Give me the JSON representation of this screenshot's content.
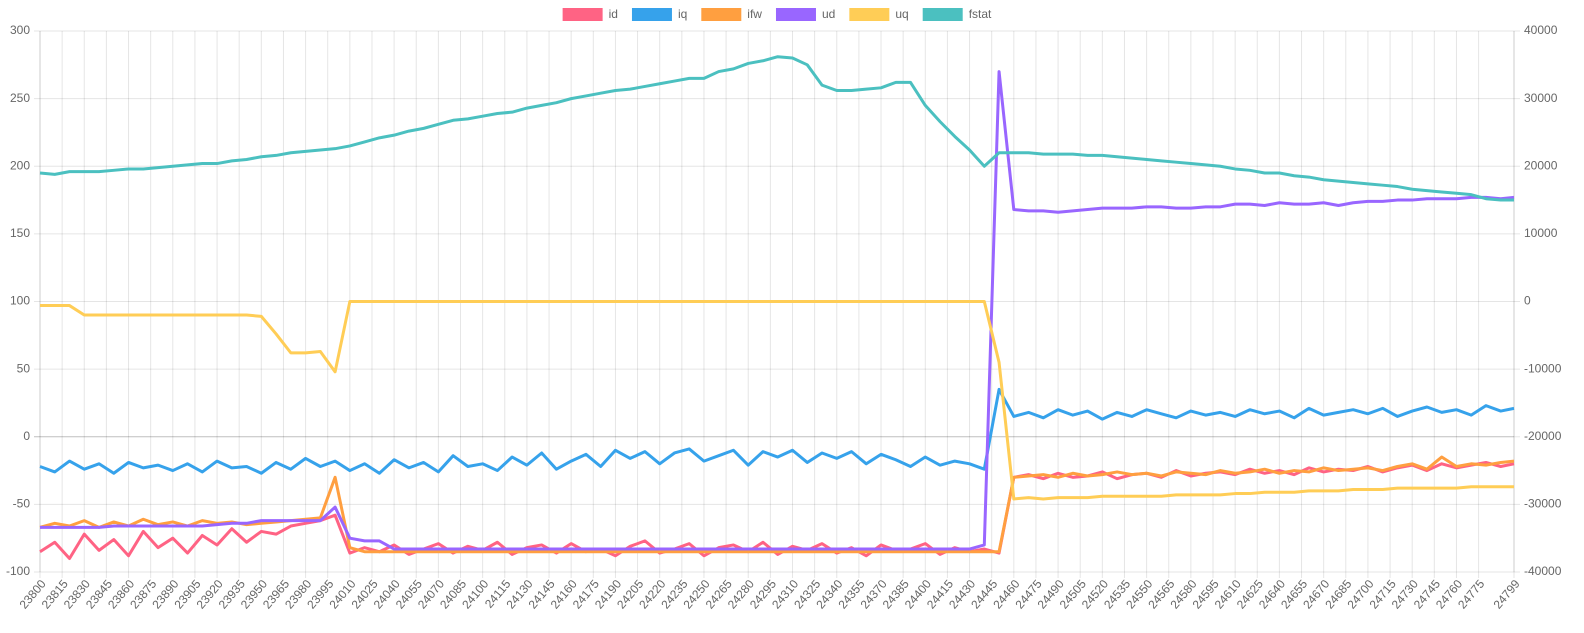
{
  "chart_data": {
    "type": "line",
    "legend": "top",
    "grid": true,
    "xlim": [
      23800,
      24799
    ],
    "xticks": [
      23800,
      23815,
      23830,
      23845,
      23860,
      23875,
      23890,
      23905,
      23920,
      23935,
      23950,
      23965,
      23980,
      23995,
      24010,
      24025,
      24040,
      24055,
      24070,
      24085,
      24100,
      24115,
      24130,
      24145,
      24160,
      24175,
      24190,
      24205,
      24220,
      24235,
      24250,
      24265,
      24280,
      24295,
      24310,
      24325,
      24340,
      24355,
      24370,
      24385,
      24400,
      24415,
      24430,
      24445,
      24460,
      24475,
      24490,
      24505,
      24520,
      24535,
      24550,
      24565,
      24580,
      24595,
      24610,
      24625,
      24640,
      24655,
      24670,
      24685,
      24700,
      24715,
      24730,
      24745,
      24760,
      24775,
      24799
    ],
    "ylim": [
      -100,
      300
    ],
    "yticks": [
      -100,
      -50,
      0,
      50,
      100,
      150,
      200,
      250,
      300
    ],
    "y2lim": [
      -40000,
      40000
    ],
    "y2ticks": [
      -40000,
      -30000,
      -20000,
      -10000,
      0,
      10000,
      20000,
      30000,
      40000
    ],
    "x": [
      23800,
      23810,
      23820,
      23830,
      23840,
      23850,
      23860,
      23870,
      23880,
      23890,
      23900,
      23910,
      23920,
      23930,
      23940,
      23950,
      23960,
      23970,
      23980,
      23990,
      24000,
      24010,
      24020,
      24030,
      24040,
      24050,
      24060,
      24070,
      24080,
      24090,
      24100,
      24110,
      24120,
      24130,
      24140,
      24150,
      24160,
      24170,
      24180,
      24190,
      24200,
      24210,
      24220,
      24230,
      24240,
      24250,
      24260,
      24270,
      24280,
      24290,
      24300,
      24310,
      24320,
      24330,
      24340,
      24350,
      24360,
      24370,
      24380,
      24390,
      24400,
      24410,
      24420,
      24430,
      24440,
      24450,
      24460,
      24470,
      24480,
      24490,
      24500,
      24510,
      24520,
      24530,
      24540,
      24550,
      24560,
      24570,
      24580,
      24590,
      24600,
      24610,
      24620,
      24630,
      24640,
      24650,
      24660,
      24670,
      24680,
      24690,
      24700,
      24710,
      24720,
      24730,
      24740,
      24750,
      24760,
      24770,
      24780,
      24790,
      24799
    ],
    "series": [
      {
        "name": "id",
        "color": "#ff6384",
        "values": [
          -85,
          -78,
          -90,
          -72,
          -84,
          -76,
          -88,
          -70,
          -82,
          -75,
          -86,
          -73,
          -80,
          -68,
          -78,
          -70,
          -72,
          -66,
          -64,
          -62,
          -58,
          -86,
          -82,
          -85,
          -80,
          -87,
          -83,
          -79,
          -86,
          -81,
          -84,
          -78,
          -87,
          -82,
          -80,
          -86,
          -79,
          -85,
          -83,
          -88,
          -81,
          -77,
          -86,
          -83,
          -79,
          -88,
          -82,
          -80,
          -85,
          -78,
          -87,
          -81,
          -84,
          -79,
          -86,
          -82,
          -88,
          -80,
          -84,
          -83,
          -79,
          -87,
          -82,
          -85,
          -83,
          -86,
          -30,
          -28,
          -31,
          -27,
          -30,
          -29,
          -26,
          -31,
          -28,
          -27,
          -30,
          -25,
          -29,
          -27,
          -26,
          -28,
          -24,
          -27,
          -25,
          -28,
          -23,
          -26,
          -24,
          -25,
          -22,
          -26,
          -23,
          -21,
          -25,
          -20,
          -23,
          -21,
          -19,
          -22,
          -20
        ]
      },
      {
        "name": "iq",
        "color": "#36a2eb",
        "values": [
          -22,
          -26,
          -18,
          -24,
          -20,
          -27,
          -19,
          -23,
          -21,
          -25,
          -20,
          -26,
          -18,
          -23,
          -22,
          -27,
          -19,
          -24,
          -16,
          -22,
          -18,
          -25,
          -20,
          -27,
          -17,
          -23,
          -19,
          -26,
          -14,
          -22,
          -20,
          -25,
          -15,
          -21,
          -12,
          -24,
          -18,
          -13,
          -22,
          -10,
          -16,
          -11,
          -20,
          -12,
          -9,
          -18,
          -14,
          -10,
          -21,
          -11,
          -15,
          -10,
          -19,
          -12,
          -16,
          -11,
          -20,
          -13,
          -17,
          -22,
          -15,
          -21,
          -18,
          -20,
          -24,
          35,
          15,
          18,
          14,
          20,
          16,
          19,
          13,
          18,
          15,
          20,
          17,
          14,
          19,
          16,
          18,
          15,
          20,
          17,
          19,
          14,
          21,
          16,
          18,
          20,
          17,
          21,
          15,
          19,
          22,
          18,
          20,
          16,
          23,
          19,
          21
        ]
      },
      {
        "name": "ifw",
        "color": "#ff9f40",
        "values": [
          -67,
          -64,
          -66,
          -62,
          -67,
          -63,
          -66,
          -61,
          -65,
          -63,
          -66,
          -62,
          -64,
          -63,
          -65,
          -64,
          -63,
          -62,
          -61,
          -60,
          -30,
          -82,
          -85,
          -85,
          -85,
          -85,
          -85,
          -85,
          -85,
          -85,
          -85,
          -85,
          -85,
          -85,
          -85,
          -85,
          -85,
          -85,
          -85,
          -85,
          -85,
          -85,
          -85,
          -85,
          -85,
          -85,
          -85,
          -85,
          -85,
          -85,
          -85,
          -85,
          -85,
          -85,
          -85,
          -85,
          -85,
          -85,
          -85,
          -85,
          -85,
          -85,
          -85,
          -85,
          -85,
          -85,
          -30,
          -29,
          -28,
          -30,
          -27,
          -29,
          -28,
          -26,
          -28,
          -27,
          -29,
          -26,
          -27,
          -28,
          -25,
          -27,
          -26,
          -24,
          -27,
          -25,
          -26,
          -23,
          -25,
          -24,
          -23,
          -25,
          -22,
          -20,
          -24,
          -15,
          -22,
          -20,
          -21,
          -19,
          -18
        ]
      },
      {
        "name": "ud",
        "color": "#9966ff",
        "values": [
          -67,
          -67,
          -67,
          -67,
          -67,
          -66,
          -66,
          -66,
          -66,
          -66,
          -66,
          -66,
          -65,
          -64,
          -64,
          -62,
          -62,
          -62,
          -62,
          -62,
          -52,
          -75,
          -77,
          -77,
          -83,
          -83,
          -83,
          -83,
          -83,
          -83,
          -83,
          -83,
          -83,
          -83,
          -83,
          -83,
          -83,
          -83,
          -83,
          -83,
          -83,
          -83,
          -83,
          -83,
          -83,
          -83,
          -83,
          -83,
          -83,
          -83,
          -83,
          -83,
          -83,
          -83,
          -83,
          -83,
          -83,
          -83,
          -83,
          -83,
          -83,
          -83,
          -83,
          -83,
          -80,
          270,
          168,
          167,
          167,
          166,
          167,
          168,
          169,
          169,
          169,
          170,
          170,
          169,
          169,
          170,
          170,
          172,
          172,
          171,
          173,
          172,
          172,
          173,
          171,
          173,
          174,
          174,
          175,
          175,
          176,
          176,
          176,
          177,
          177,
          176,
          177
        ]
      },
      {
        "name": "uq",
        "color": "#ffcd56",
        "values": [
          97,
          97,
          97,
          90,
          90,
          90,
          90,
          90,
          90,
          90,
          90,
          90,
          90,
          90,
          90,
          89,
          76,
          62,
          62,
          63,
          48,
          100,
          100,
          100,
          100,
          100,
          100,
          100,
          100,
          100,
          100,
          100,
          100,
          100,
          100,
          100,
          100,
          100,
          100,
          100,
          100,
          100,
          100,
          100,
          100,
          100,
          100,
          100,
          100,
          100,
          100,
          100,
          100,
          100,
          100,
          100,
          100,
          100,
          100,
          100,
          100,
          100,
          100,
          100,
          100,
          55,
          -46,
          -45,
          -46,
          -45,
          -45,
          -45,
          -44,
          -44,
          -44,
          -44,
          -44,
          -43,
          -43,
          -43,
          -43,
          -42,
          -42,
          -41,
          -41,
          -41,
          -40,
          -40,
          -40,
          -39,
          -39,
          -39,
          -38,
          -38,
          -38,
          -38,
          -38,
          -37,
          -37,
          -37,
          -37
        ]
      },
      {
        "name": "fstat",
        "color": "#4bc0c0",
        "axis": "y2",
        "values": [
          19000,
          18800,
          19200,
          19200,
          19200,
          19400,
          19600,
          19600,
          19800,
          20000,
          20200,
          20400,
          20400,
          20800,
          21000,
          21400,
          21600,
          22000,
          22200,
          22400,
          22600,
          23000,
          23600,
          24200,
          24600,
          25200,
          25600,
          26200,
          26800,
          27000,
          27400,
          27800,
          28000,
          28600,
          29000,
          29400,
          30000,
          30400,
          30800,
          31200,
          31400,
          31800,
          32200,
          32600,
          33000,
          33000,
          34000,
          34400,
          35200,
          35600,
          36200,
          36000,
          35000,
          32000,
          31200,
          31200,
          31400,
          31600,
          32400,
          32400,
          29000,
          26600,
          24400,
          22400,
          20000,
          22000,
          22000,
          22000,
          21800,
          21800,
          21800,
          21600,
          21600,
          21400,
          21200,
          21000,
          20800,
          20600,
          20400,
          20200,
          20000,
          19600,
          19400,
          19000,
          19000,
          18600,
          18400,
          18000,
          17800,
          17600,
          17400,
          17200,
          17000,
          16600,
          16400,
          16200,
          16000,
          15800,
          15200,
          15000,
          15000
        ]
      }
    ]
  }
}
